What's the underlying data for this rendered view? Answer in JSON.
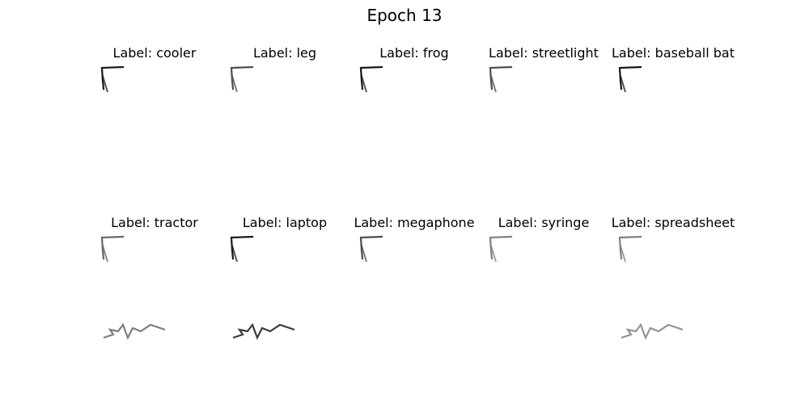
{
  "figure": {
    "title": "Epoch 13"
  },
  "panels": [
    {
      "label": "Label: cooler",
      "stroke_intensity": 0.9,
      "has_lower_scribble": false
    },
    {
      "label": "Label: leg",
      "stroke_intensity": 0.7,
      "has_lower_scribble": false
    },
    {
      "label": "Label: frog",
      "stroke_intensity": 0.9,
      "has_lower_scribble": false
    },
    {
      "label": "Label: streetlight",
      "stroke_intensity": 0.7,
      "has_lower_scribble": false
    },
    {
      "label": "Label: baseball bat",
      "stroke_intensity": 0.9,
      "has_lower_scribble": false
    },
    {
      "label": "Label: tractor",
      "stroke_intensity": 0.6,
      "has_lower_scribble": true
    },
    {
      "label": "Label: laptop",
      "stroke_intensity": 0.9,
      "has_lower_scribble": true
    },
    {
      "label": "Label: megaphone",
      "stroke_intensity": 0.7,
      "has_lower_scribble": false
    },
    {
      "label": "Label: syringe",
      "stroke_intensity": 0.5,
      "has_lower_scribble": false
    },
    {
      "label": "Label: spreadsheet",
      "stroke_intensity": 0.5,
      "has_lower_scribble": true
    }
  ]
}
